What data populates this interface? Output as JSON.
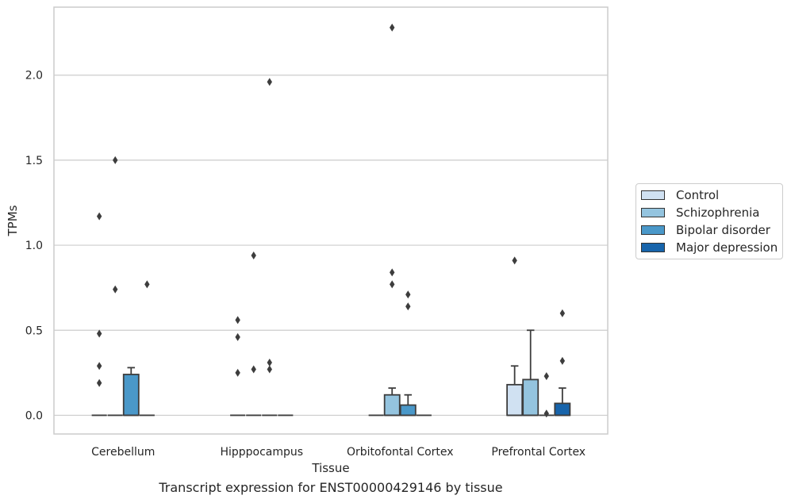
{
  "chart_data": {
    "type": "box",
    "xlabel": "Tissue",
    "ylabel": "TPMs",
    "caption": "Transcript expression for ENST00000429146 by tissue",
    "categories": [
      "Cerebellum",
      "Hipppocampus",
      "Orbitofontal Cortex",
      "Prefrontal Cortex"
    ],
    "ylim": [
      -0.11,
      2.4
    ],
    "yticks": [
      0.0,
      0.5,
      1.0,
      1.5,
      2.0
    ],
    "ytick_labels": [
      "0.0",
      "0.5",
      "1.0",
      "1.5",
      "2.0"
    ],
    "grid": true,
    "legend_position": "right",
    "series": [
      {
        "name": "Control",
        "color": "#d0e1f2",
        "boxes": [
          {
            "q1": 0,
            "median": 0,
            "q3": 0,
            "whisker_low": 0,
            "whisker_high": 0,
            "outliers": [
              1.17,
              0.48,
              0.29,
              0.19
            ]
          },
          {
            "q1": 0,
            "median": 0,
            "q3": 0,
            "whisker_low": 0,
            "whisker_high": 0,
            "outliers": [
              0.56,
              0.46,
              0.25
            ]
          },
          {
            "q1": 0,
            "median": 0,
            "q3": 0,
            "whisker_low": 0,
            "whisker_high": 0,
            "outliers": []
          },
          {
            "q1": 0,
            "median": 0,
            "q3": 0.18,
            "whisker_low": 0,
            "whisker_high": 0.29,
            "outliers": [
              0.91
            ]
          }
        ]
      },
      {
        "name": "Schizophrenia",
        "color": "#94c4df",
        "boxes": [
          {
            "q1": 0,
            "median": 0,
            "q3": 0,
            "whisker_low": 0,
            "whisker_high": 0,
            "outliers": [
              1.5,
              0.74
            ]
          },
          {
            "q1": 0,
            "median": 0,
            "q3": 0,
            "whisker_low": 0,
            "whisker_high": 0,
            "outliers": [
              0.94,
              0.27
            ]
          },
          {
            "q1": 0,
            "median": 0,
            "q3": 0.12,
            "whisker_low": 0,
            "whisker_high": 0.16,
            "outliers": [
              2.28,
              0.84,
              0.77
            ]
          },
          {
            "q1": 0,
            "median": 0,
            "q3": 0.21,
            "whisker_low": 0,
            "whisker_high": 0.5,
            "outliers": []
          }
        ]
      },
      {
        "name": "Bipolar disorder",
        "color": "#4a98c9",
        "boxes": [
          {
            "q1": 0,
            "median": 0,
            "q3": 0.24,
            "whisker_low": 0,
            "whisker_high": 0.28,
            "outliers": []
          },
          {
            "q1": 0,
            "median": 0,
            "q3": 0,
            "whisker_low": 0,
            "whisker_high": 0,
            "outliers": [
              1.96,
              0.31,
              0.27
            ]
          },
          {
            "q1": 0,
            "median": 0,
            "q3": 0.06,
            "whisker_low": 0,
            "whisker_high": 0.12,
            "outliers": [
              0.71,
              0.64
            ]
          },
          {
            "q1": 0,
            "median": 0,
            "q3": 0,
            "whisker_low": 0,
            "whisker_high": 0,
            "outliers": [
              0.23,
              0.01
            ]
          }
        ]
      },
      {
        "name": "Major depression",
        "color": "#1764ab",
        "boxes": [
          {
            "q1": 0,
            "median": 0,
            "q3": 0,
            "whisker_low": 0,
            "whisker_high": 0,
            "outliers": [
              0.77
            ]
          },
          {
            "q1": 0,
            "median": 0,
            "q3": 0,
            "whisker_low": 0,
            "whisker_high": 0,
            "outliers": []
          },
          {
            "q1": 0,
            "median": 0,
            "q3": 0,
            "whisker_low": 0,
            "whisker_high": 0,
            "outliers": []
          },
          {
            "q1": 0,
            "median": 0,
            "q3": 0.07,
            "whisker_low": 0,
            "whisker_high": 0.16,
            "outliers": [
              0.6,
              0.32
            ]
          }
        ]
      }
    ]
  }
}
